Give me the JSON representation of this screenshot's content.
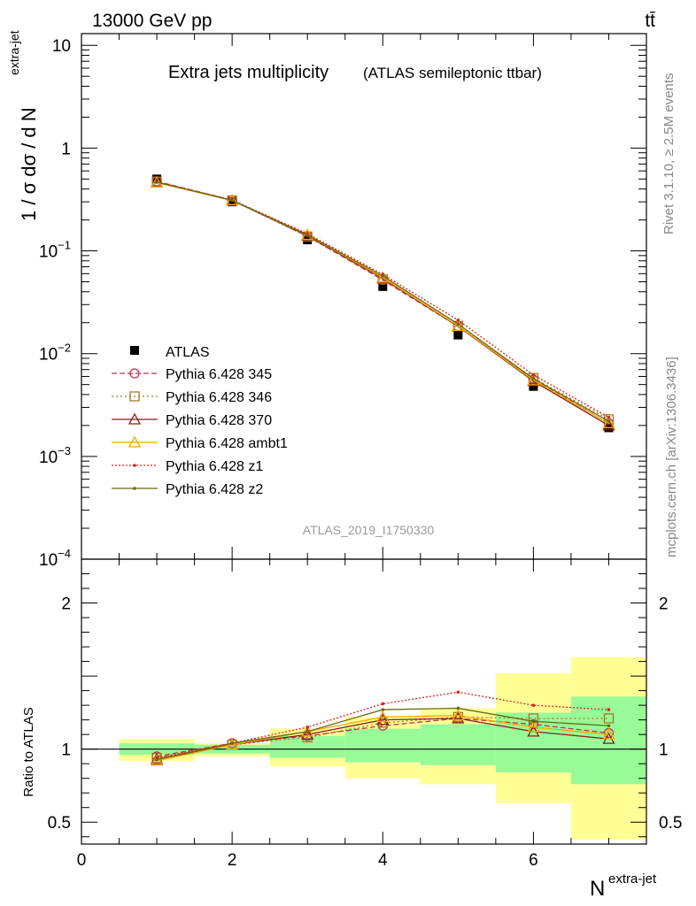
{
  "header": {
    "energy": "13000 GeV pp",
    "process": "tt̄"
  },
  "side_labels": {
    "rivet": "Rivet 3.1.10, ≥ 2.5M events",
    "mcplots": "mcplots.cern.ch [arXiv:1306.3436]"
  },
  "chart_data": [
    {
      "type": "scatter",
      "panel": "main",
      "title": "Extra jets multiplicity",
      "subtitle": "(ATLAS semileptonic ttbar)",
      "ylabel": "1 / σ dσ / d N",
      "ylabel_sup": "extra-jet",
      "watermark": "ATLAS_2019_I1750330",
      "yscale": "log",
      "xlim": [
        0,
        7.5
      ],
      "ylim": [
        0.0001,
        13
      ],
      "x_ticks": [
        0,
        2,
        4,
        6
      ],
      "y_ticks": [
        {
          "value": 10,
          "base": "10",
          "exp": ""
        },
        {
          "value": 1,
          "base": "1",
          "exp": ""
        },
        {
          "value": 0.1,
          "base": "10",
          "exp": "−1"
        },
        {
          "value": 0.01,
          "base": "10",
          "exp": "−2"
        },
        {
          "value": 0.001,
          "base": "10",
          "exp": "−3"
        },
        {
          "value": 0.0001,
          "base": "10",
          "exp": "−4"
        }
      ],
      "legend_position": "center-left",
      "data": {
        "name": "ATLAS",
        "x": [
          1,
          2,
          3,
          4,
          5,
          6,
          7
        ],
        "y": [
          0.5,
          0.3,
          0.128,
          0.045,
          0.0152,
          0.0048,
          0.0019
        ]
      },
      "series": [
        {
          "name": "Pythia 6.428 345",
          "color": "#c0324a",
          "dash": "6,3",
          "marker": "circle",
          "x": [
            1,
            2,
            3,
            4,
            5,
            6,
            7
          ],
          "y": [
            0.475,
            0.312,
            0.139,
            0.052,
            0.0184,
            0.0056,
            0.0021
          ]
        },
        {
          "name": "Pythia 6.428 346",
          "color": "#a37a25",
          "dash": "2,3",
          "marker": "square",
          "x": [
            1,
            2,
            3,
            4,
            5,
            6,
            7
          ],
          "y": [
            0.472,
            0.31,
            0.138,
            0.053,
            0.0186,
            0.0058,
            0.0023
          ]
        },
        {
          "name": "Pythia 6.428 370",
          "color": "#8b1a1a",
          "dash": "",
          "marker": "triangle",
          "x": [
            1,
            2,
            3,
            4,
            5,
            6,
            7
          ],
          "y": [
            0.465,
            0.309,
            0.141,
            0.054,
            0.0184,
            0.0054,
            0.002
          ]
        },
        {
          "name": "Pythia 6.428 ambt1",
          "color": "#f2a900",
          "dash": "",
          "marker": "triangle",
          "x": [
            1,
            2,
            3,
            4,
            5,
            6,
            7
          ],
          "y": [
            0.462,
            0.31,
            0.143,
            0.055,
            0.0186,
            0.0055,
            0.0021
          ]
        },
        {
          "name": "Pythia 6.428 z1",
          "color": "#e0201b",
          "dash": "2,2",
          "marker": "dot",
          "x": [
            1,
            2,
            3,
            4,
            5,
            6,
            7
          ],
          "y": [
            0.468,
            0.313,
            0.147,
            0.059,
            0.0212,
            0.0062,
            0.0024
          ]
        },
        {
          "name": "Pythia 6.428 z2",
          "color": "#6b6b10",
          "dash": "",
          "marker": "dot",
          "x": [
            1,
            2,
            3,
            4,
            5,
            6,
            7
          ],
          "y": [
            0.465,
            0.311,
            0.143,
            0.057,
            0.0194,
            0.0057,
            0.0022
          ]
        }
      ]
    },
    {
      "type": "scatter",
      "panel": "ratio",
      "ylabel": "Ratio to ATLAS",
      "xlabel": "N",
      "xlabel_sup": "extra-jet",
      "xlim": [
        0,
        7.5
      ],
      "ylim": [
        0.35,
        2.3
      ],
      "x_ticks": [
        0,
        2,
        4,
        6
      ],
      "y_ticks": [
        0.5,
        1,
        2
      ],
      "bins": [
        {
          "x0": 0.5,
          "x1": 1.5,
          "green": [
            0.96,
            1.04
          ],
          "yellow": [
            0.92,
            1.07
          ]
        },
        {
          "x0": 1.5,
          "x1": 2.5,
          "green": [
            0.97,
            1.03
          ],
          "yellow": [
            0.95,
            1.04
          ]
        },
        {
          "x0": 2.5,
          "x1": 3.5,
          "green": [
            0.94,
            1.09
          ],
          "yellow": [
            0.88,
            1.14
          ]
        },
        {
          "x0": 3.5,
          "x1": 4.5,
          "green": [
            0.91,
            1.14
          ],
          "yellow": [
            0.8,
            1.22
          ]
        },
        {
          "x0": 4.5,
          "x1": 5.5,
          "green": [
            0.89,
            1.17
          ],
          "yellow": [
            0.76,
            1.28
          ]
        },
        {
          "x0": 5.5,
          "x1": 6.5,
          "green": [
            0.84,
            1.25
          ],
          "yellow": [
            0.63,
            1.52
          ]
        },
        {
          "x0": 6.5,
          "x1": 7.5,
          "green": [
            0.76,
            1.36
          ],
          "yellow": [
            0.38,
            1.63
          ]
        }
      ],
      "series": [
        {
          "name": "Pythia 6.428 345",
          "x": [
            1,
            2,
            3,
            4,
            5,
            6,
            7
          ],
          "y": [
            0.95,
            1.04,
            1.09,
            1.16,
            1.21,
            1.17,
            1.11
          ]
        },
        {
          "name": "Pythia 6.428 346",
          "x": [
            1,
            2,
            3,
            4,
            5,
            6,
            7
          ],
          "y": [
            0.94,
            1.03,
            1.08,
            1.18,
            1.22,
            1.21,
            1.21
          ]
        },
        {
          "name": "Pythia 6.428 370",
          "x": [
            1,
            2,
            3,
            4,
            5,
            6,
            7
          ],
          "y": [
            0.93,
            1.03,
            1.1,
            1.2,
            1.21,
            1.12,
            1.07
          ]
        },
        {
          "name": "Pythia 6.428 ambt1",
          "x": [
            1,
            2,
            3,
            4,
            5,
            6,
            7
          ],
          "y": [
            0.92,
            1.03,
            1.12,
            1.22,
            1.23,
            1.15,
            1.1
          ]
        },
        {
          "name": "Pythia 6.428 z1",
          "x": [
            1,
            2,
            3,
            4,
            5,
            6,
            7
          ],
          "y": [
            0.94,
            1.04,
            1.15,
            1.31,
            1.39,
            1.3,
            1.27
          ]
        },
        {
          "name": "Pythia 6.428 z2",
          "x": [
            1,
            2,
            3,
            4,
            5,
            6,
            7
          ],
          "y": [
            0.93,
            1.04,
            1.12,
            1.27,
            1.28,
            1.19,
            1.16
          ]
        }
      ]
    }
  ]
}
